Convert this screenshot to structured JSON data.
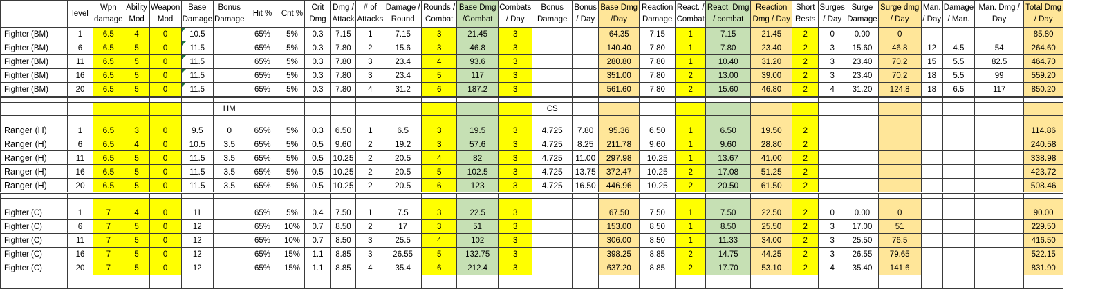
{
  "headers": [
    "",
    "level",
    "Wpn damage",
    "Ability Mod",
    "Weapon Mod",
    "Base Damage",
    "Bonus Damage",
    "Hit %",
    "Crit %",
    "Crit Dmg",
    "Dmg / Attack",
    "# of Attacks",
    "Damage / Round",
    "Rounds / Combat",
    "Base Dmg /Combat",
    "Combats / Day",
    "Bonus Damage",
    "Bonus / Day",
    "Base Dmg /Day",
    "Reaction Damage",
    "React. / Combat",
    "React. Dmg / combat",
    "Reaction Dmg / Day",
    "Short Rests",
    "Surges / Day",
    "Surge Damage",
    "Surge dmg / Day",
    "Man. / Day",
    "Damage / Man.",
    "Man. Dmg / Day",
    "Total Dmg / Day"
  ],
  "section_labels": {
    "hm": "HM",
    "cs": "CS"
  },
  "fighter_bm": [
    [
      "Fighter (BM)",
      "1",
      "6.5",
      "4",
      "0",
      "10.5",
      "",
      "65%",
      "5%",
      "0.3",
      "7.15",
      "1",
      "7.15",
      "3",
      "21.45",
      "3",
      "",
      "",
      "64.35",
      "7.15",
      "1",
      "7.15",
      "21.45",
      "2",
      "0",
      "0.00",
      "0",
      "",
      "",
      "",
      "85.80"
    ],
    [
      "Fighter (BM)",
      "6",
      "6.5",
      "5",
      "0",
      "11.5",
      "",
      "65%",
      "5%",
      "0.3",
      "7.80",
      "2",
      "15.6",
      "3",
      "46.8",
      "3",
      "",
      "",
      "140.40",
      "7.80",
      "1",
      "7.80",
      "23.40",
      "2",
      "3",
      "15.60",
      "46.8",
      "12",
      "4.5",
      "54",
      "264.60"
    ],
    [
      "Fighter (BM)",
      "11",
      "6.5",
      "5",
      "0",
      "11.5",
      "",
      "65%",
      "5%",
      "0.3",
      "7.80",
      "3",
      "23.4",
      "4",
      "93.6",
      "3",
      "",
      "",
      "280.80",
      "7.80",
      "1",
      "10.40",
      "31.20",
      "2",
      "3",
      "23.40",
      "70.2",
      "15",
      "5.5",
      "82.5",
      "464.70"
    ],
    [
      "Fighter (BM)",
      "16",
      "6.5",
      "5",
      "0",
      "11.5",
      "",
      "65%",
      "5%",
      "0.3",
      "7.80",
      "3",
      "23.4",
      "5",
      "117",
      "3",
      "",
      "",
      "351.00",
      "7.80",
      "2",
      "13.00",
      "39.00",
      "2",
      "3",
      "23.40",
      "70.2",
      "18",
      "5.5",
      "99",
      "559.20"
    ],
    [
      "Fighter (BM)",
      "20",
      "6.5",
      "5",
      "0",
      "11.5",
      "",
      "65%",
      "5%",
      "0.3",
      "7.80",
      "4",
      "31.2",
      "6",
      "187.2",
      "3",
      "",
      "",
      "561.60",
      "7.80",
      "2",
      "15.60",
      "46.80",
      "2",
      "4",
      "31.20",
      "124.8",
      "18",
      "6.5",
      "117",
      "850.20"
    ]
  ],
  "ranger_h": [
    [
      "Ranger (H)",
      "1",
      "6.5",
      "3",
      "0",
      "9.5",
      "0",
      "65%",
      "5%",
      "0.3",
      "6.50",
      "1",
      "6.5",
      "3",
      "19.5",
      "3",
      "4.725",
      "7.80",
      "95.36",
      "6.50",
      "1",
      "6.50",
      "19.50",
      "2",
      "",
      "",
      "",
      "",
      "",
      "",
      "114.86"
    ],
    [
      "Ranger (H)",
      "6",
      "6.5",
      "4",
      "0",
      "10.5",
      "3.5",
      "65%",
      "5%",
      "0.5",
      "9.60",
      "2",
      "19.2",
      "3",
      "57.6",
      "3",
      "4.725",
      "8.25",
      "211.78",
      "9.60",
      "1",
      "9.60",
      "28.80",
      "2",
      "",
      "",
      "",
      "",
      "",
      "",
      "240.58"
    ],
    [
      "Ranger (H)",
      "11",
      "6.5",
      "5",
      "0",
      "11.5",
      "3.5",
      "65%",
      "5%",
      "0.5",
      "10.25",
      "2",
      "20.5",
      "4",
      "82",
      "3",
      "4.725",
      "11.00",
      "297.98",
      "10.25",
      "1",
      "13.67",
      "41.00",
      "2",
      "",
      "",
      "",
      "",
      "",
      "",
      "338.98"
    ],
    [
      "Ranger (H)",
      "16",
      "6.5",
      "5",
      "0",
      "11.5",
      "3.5",
      "65%",
      "5%",
      "0.5",
      "10.25",
      "2",
      "20.5",
      "5",
      "102.5",
      "3",
      "4.725",
      "13.75",
      "372.47",
      "10.25",
      "2",
      "17.08",
      "51.25",
      "2",
      "",
      "",
      "",
      "",
      "",
      "",
      "423.72"
    ],
    [
      "Ranger (H)",
      "20",
      "6.5",
      "5",
      "0",
      "11.5",
      "3.5",
      "65%",
      "5%",
      "0.5",
      "10.25",
      "2",
      "20.5",
      "6",
      "123",
      "3",
      "4.725",
      "16.50",
      "446.96",
      "10.25",
      "2",
      "20.50",
      "61.50",
      "2",
      "",
      "",
      "",
      "",
      "",
      "",
      "508.46"
    ]
  ],
  "fighter_c": [
    [
      "Fighter (C)",
      "1",
      "7",
      "4",
      "0",
      "11",
      "",
      "65%",
      "5%",
      "0.4",
      "7.50",
      "1",
      "7.5",
      "3",
      "22.5",
      "3",
      "",
      "",
      "67.50",
      "7.50",
      "1",
      "7.50",
      "22.50",
      "2",
      "0",
      "0.00",
      "0",
      "",
      "",
      "",
      "90.00"
    ],
    [
      "Fighter (C)",
      "6",
      "7",
      "5",
      "0",
      "12",
      "",
      "65%",
      "10%",
      "0.7",
      "8.50",
      "2",
      "17",
      "3",
      "51",
      "3",
      "",
      "",
      "153.00",
      "8.50",
      "1",
      "8.50",
      "25.50",
      "2",
      "3",
      "17.00",
      "51",
      "",
      "",
      "",
      "229.50"
    ],
    [
      "Fighter (C)",
      "11",
      "7",
      "5",
      "0",
      "12",
      "",
      "65%",
      "10%",
      "0.7",
      "8.50",
      "3",
      "25.5",
      "4",
      "102",
      "3",
      "",
      "",
      "306.00",
      "8.50",
      "1",
      "11.33",
      "34.00",
      "2",
      "3",
      "25.50",
      "76.5",
      "",
      "",
      "",
      "416.50"
    ],
    [
      "Fighter (C)",
      "16",
      "7",
      "5",
      "0",
      "12",
      "",
      "65%",
      "15%",
      "1.1",
      "8.85",
      "3",
      "26.55",
      "5",
      "132.75",
      "3",
      "",
      "",
      "398.25",
      "8.85",
      "2",
      "14.75",
      "44.25",
      "2",
      "3",
      "26.55",
      "79.65",
      "",
      "",
      "",
      "522.15"
    ],
    [
      "Fighter (C)",
      "20",
      "7",
      "5",
      "0",
      "12",
      "",
      "65%",
      "15%",
      "1.1",
      "8.85",
      "4",
      "35.4",
      "6",
      "212.4",
      "3",
      "",
      "",
      "637.20",
      "8.85",
      "2",
      "17.70",
      "53.10",
      "2",
      "4",
      "35.40",
      "141.6",
      "",
      "",
      "",
      "831.90"
    ]
  ],
  "colors": {
    "yellow": "#ffff00",
    "green": "#c6e0b4",
    "orange": "#ffe699"
  }
}
